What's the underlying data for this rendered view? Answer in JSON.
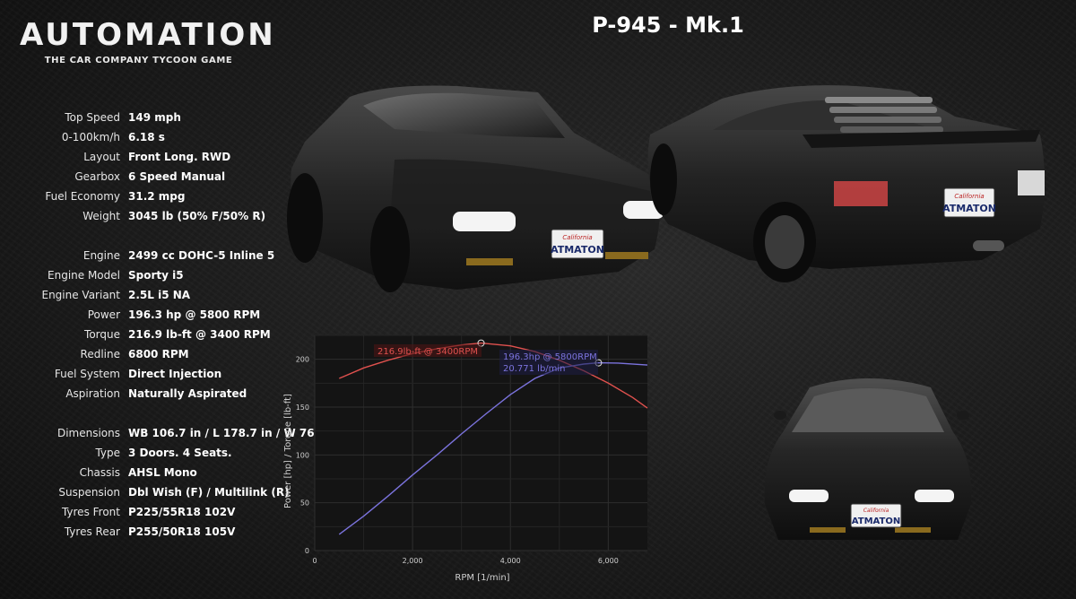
{
  "logo": {
    "wordmark": "AUTOMATION",
    "tagline": "THE CAR COMPANY TYCOON GAME"
  },
  "car_title": "P-945 - Mk.1",
  "license_plate": {
    "state": "California",
    "text": "ATMATON"
  },
  "specs_group1": [
    {
      "label": "Top Speed",
      "value": "149 mph"
    },
    {
      "label": "0-100km/h",
      "value": "6.18 s"
    },
    {
      "label": "Layout",
      "value": "Front Long. RWD"
    },
    {
      "label": "Gearbox",
      "value": "6 Speed Manual"
    },
    {
      "label": "Fuel Economy",
      "value": "31.2 mpg"
    },
    {
      "label": "Weight",
      "value": "3045 lb (50% F/50% R)"
    }
  ],
  "specs_group2": [
    {
      "label": "Engine",
      "value": "2499 cc DOHC-5 Inline 5"
    },
    {
      "label": "Engine Model",
      "value": "Sporty i5"
    },
    {
      "label": "Engine Variant",
      "value": "2.5L i5 NA"
    },
    {
      "label": "Power",
      "value": " 196.3 hp @ 5800 RPM"
    },
    {
      "label": "Torque",
      "value": " 216.9 lb-ft @ 3400 RPM"
    },
    {
      "label": "Redline",
      "value": "6800 RPM"
    },
    {
      "label": "Fuel System",
      "value": "Direct Injection"
    },
    {
      "label": "Aspiration",
      "value": "Naturally Aspirated"
    }
  ],
  "specs_group3": [
    {
      "label": "Dimensions",
      "value": "WB 106.7 in / L 178.7 in / W 76.9 in"
    },
    {
      "label": "Type",
      "value": "3 Doors. 4 Seats."
    },
    {
      "label": "Chassis",
      "value": "AHSL Mono"
    },
    {
      "label": "Suspension",
      "value": "Dbl Wish (F) / Multilink (R)"
    },
    {
      "label": "Tyres Front",
      "value": "P225/55R18 102V"
    },
    {
      "label": "Tyres Rear",
      "value": "P255/50R18  105V"
    }
  ],
  "chart_data": {
    "type": "line",
    "xlabel": "RPM [1/min]",
    "ylabel": "Power [hp] / Torque [lb-ft]",
    "xlim": [
      0,
      6800
    ],
    "ylim": [
      0,
      225
    ],
    "xticks": [
      0,
      2000,
      4000,
      6000
    ],
    "xtick_labels": [
      "0",
      "2,000",
      "4,000",
      "6,000"
    ],
    "yticks": [
      0,
      50,
      100,
      150,
      200
    ],
    "grid": true,
    "series": [
      {
        "key": "torque",
        "color": "#e0514e",
        "x": [
          500,
          1000,
          1500,
          2000,
          2500,
          3000,
          3400,
          4000,
          4500,
          5000,
          5500,
          6000,
          6500,
          6800
        ],
        "y": [
          180,
          191,
          199,
          206,
          211,
          215,
          216.9,
          214,
          208,
          199,
          188,
          175,
          160,
          149
        ]
      },
      {
        "key": "power",
        "color": "#7b73dd",
        "x": [
          500,
          1000,
          1500,
          2000,
          2500,
          3000,
          3500,
          4000,
          4500,
          5000,
          5500,
          5800,
          6200,
          6800
        ],
        "y": [
          17,
          36,
          57,
          79,
          100,
          122,
          143,
          163,
          180,
          191,
          195,
          196.3,
          196,
          194
        ]
      }
    ],
    "annotations": [
      {
        "text": "216.9lb-ft @ 3400RPM",
        "x": 3400,
        "y": 216.9,
        "color": "#e0514e"
      },
      {
        "text": "196.3hp @ 5800RPM",
        "x": 5800,
        "y": 196.3,
        "color": "#7b73dd"
      },
      {
        "text": "20.771 lb/min",
        "color": "#7b73dd"
      }
    ]
  }
}
